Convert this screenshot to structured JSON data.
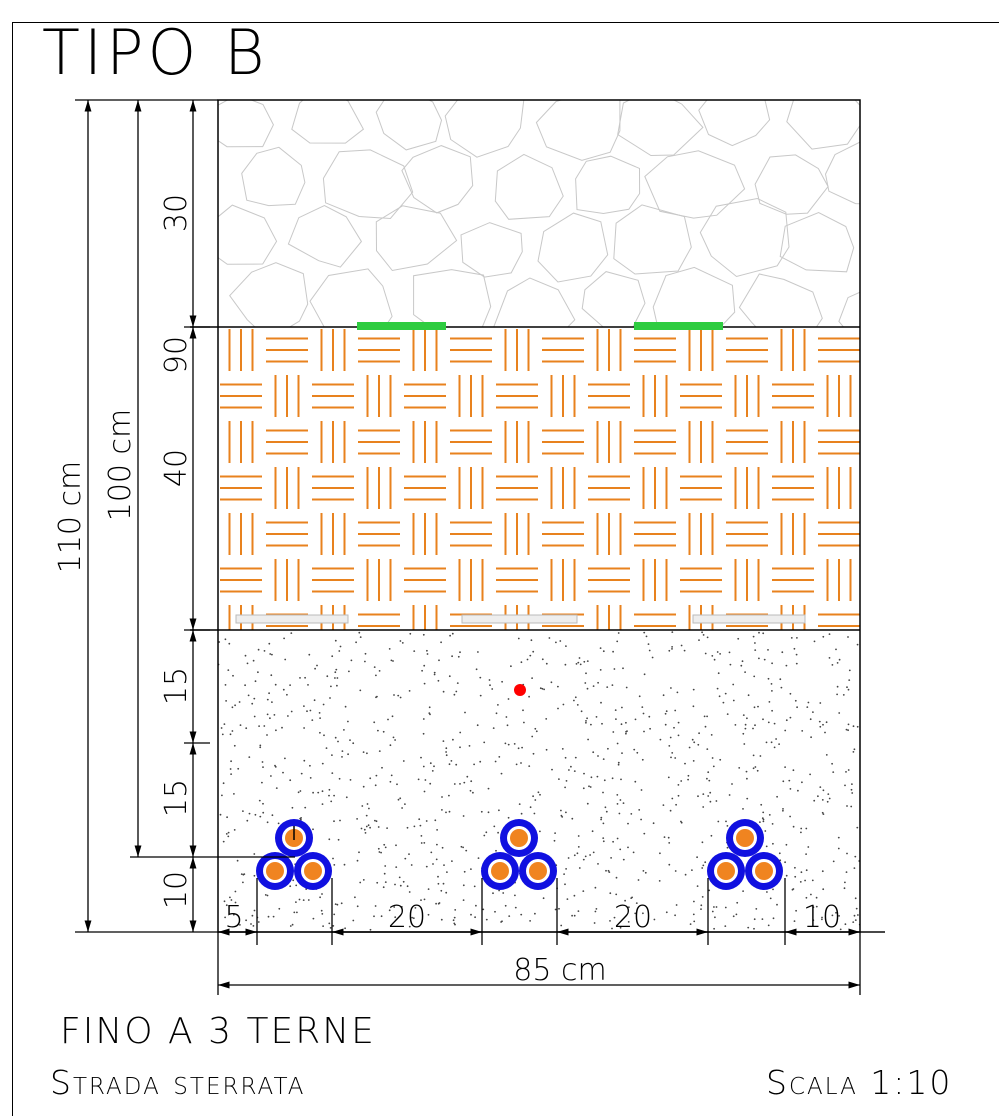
{
  "title": "TIPO B",
  "subtitle_line1": "FINO A 3 TERNE",
  "subtitle_line2": "Strada sterrata",
  "scale": "Scala 1:10",
  "dims": {
    "total_depth": "110 cm",
    "trench_depth": "100 cm",
    "layer_top": "30",
    "to_tape": "90",
    "layer_middle": "40",
    "sand_upper": "15",
    "sand_lower": "15",
    "bottom": "10",
    "left_gap": "5",
    "gap1": "20",
    "gap2": "20",
    "right_gap": "10",
    "total_width": "85 cm"
  },
  "colors": {
    "hatch": "#e8821e",
    "tape": "#2ecc40",
    "cable_outer": "#1010e0",
    "cable_core": "#f08420",
    "marker": "#ff0000"
  }
}
